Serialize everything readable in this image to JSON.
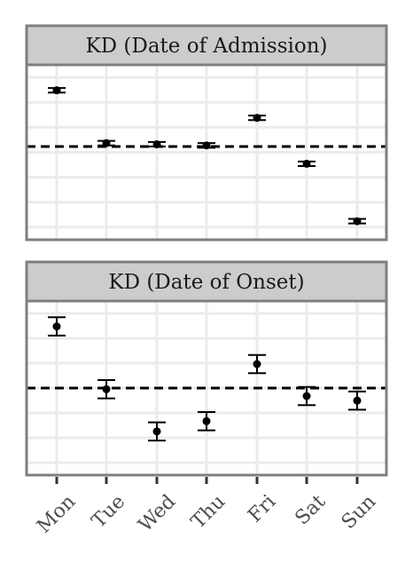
{
  "chart_data": [
    {
      "type": "scatter",
      "title": "KD (Date of Admission)",
      "categories": [
        "Mon",
        "Tue",
        "Wed",
        "Thu",
        "Fri",
        "Sat",
        "Sun"
      ],
      "values": [
        1.22,
        0.99,
        0.985,
        0.98,
        1.1,
        0.9,
        0.65
      ],
      "error_low": [
        1.21,
        0.98,
        0.975,
        0.97,
        1.09,
        0.89,
        0.64
      ],
      "error_high": [
        1.23,
        1.0,
        0.995,
        0.99,
        1.11,
        0.91,
        0.66
      ],
      "reference_line": 0.975,
      "ylim": [
        0.6,
        1.3
      ],
      "grid": true,
      "xlabel": "",
      "ylabel": ""
    },
    {
      "type": "scatter",
      "title": "KD (Date of Onset)",
      "categories": [
        "Mon",
        "Tue",
        "Wed",
        "Thu",
        "Fri",
        "Sat",
        "Sun"
      ],
      "values": [
        1.27,
        0.995,
        0.81,
        0.855,
        1.105,
        0.965,
        0.945
      ],
      "error_low": [
        1.23,
        0.955,
        0.77,
        0.815,
        1.065,
        0.925,
        0.905
      ],
      "error_high": [
        1.31,
        1.035,
        0.85,
        0.895,
        1.145,
        1.005,
        0.985
      ],
      "reference_line": 1.0,
      "ylim": [
        0.65,
        1.35
      ],
      "grid": true,
      "xlabel": "",
      "ylabel": ""
    }
  ],
  "colors": {
    "strip_fill": "#cccccc",
    "frame": "#7f7f7f",
    "grid": "#ebebeb",
    "point": "#000000",
    "tick_label": "#4d4d4d"
  }
}
